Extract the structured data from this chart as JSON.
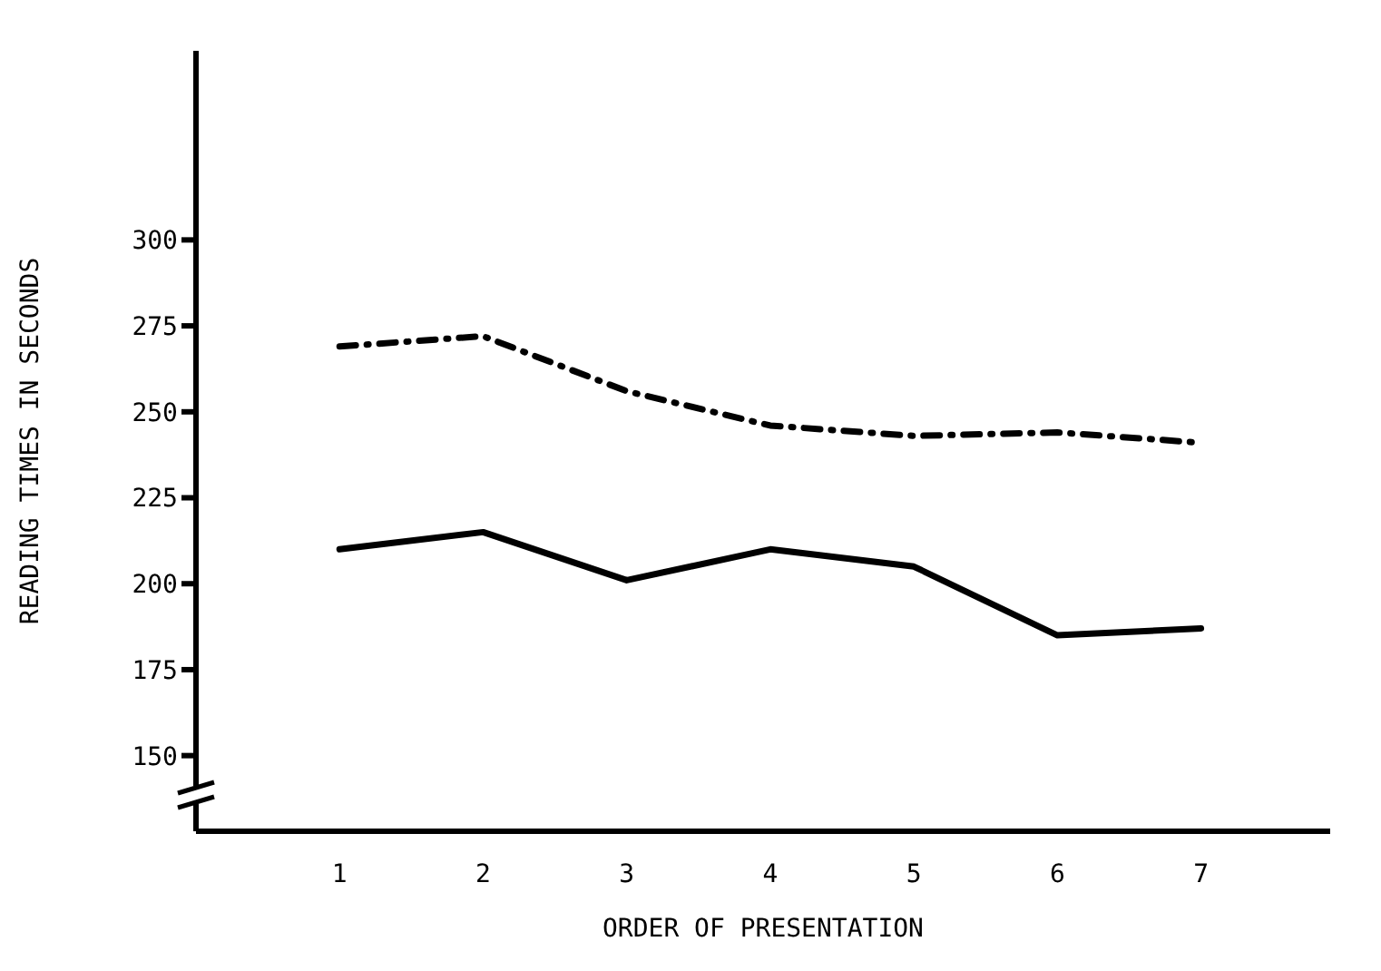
{
  "chart_data": {
    "type": "line",
    "xlabel": "ORDER OF PRESENTATION",
    "ylabel": "READING TIMES IN SECONDS",
    "x": [
      1,
      2,
      3,
      4,
      5,
      6,
      7
    ],
    "series": [
      {
        "color": "#000000",
        "line_style": "dashed",
        "values": [
          269,
          272,
          256,
          246,
          243,
          244,
          241
        ]
      },
      {
        "color": "#000000",
        "line_style": "solid",
        "values": [
          210,
          215,
          201,
          210,
          205,
          185,
          187
        ]
      }
    ],
    "xlim": [
      0,
      7.9
    ],
    "xticks": [
      1,
      2,
      3,
      4,
      5,
      6,
      7
    ],
    "ylim": [
      128,
      355
    ],
    "yticks": [
      150,
      175,
      200,
      225,
      250,
      275,
      300
    ],
    "grid": false,
    "legend": false,
    "marker": "none"
  }
}
